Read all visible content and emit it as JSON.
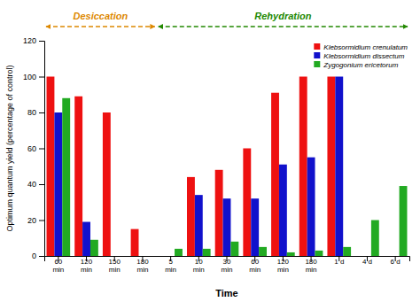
{
  "chart_data": {
    "type": "bar",
    "categories": [
      "60\nmin",
      "120\nmin",
      "150\nmin",
      "180\nmin",
      "5\nmin",
      "10\nmin",
      "30\nmin",
      "60\nmin",
      "120\nmin",
      "180\nmin",
      "1 d",
      "4 d",
      "6 d"
    ],
    "series": [
      {
        "name": "Klebsormidium crenulatum",
        "color": "#ee1111",
        "values": [
          100,
          89,
          80,
          15,
          0,
          44,
          48,
          60,
          91,
          100,
          100,
          0,
          0
        ]
      },
      {
        "name": "Klebsormidium dissectum",
        "color": "#1111cc",
        "values": [
          80,
          19,
          0,
          0,
          0,
          34,
          32,
          32,
          51,
          55,
          100,
          0,
          0
        ]
      },
      {
        "name": "Zygogonium ericetorum",
        "color": "#22aa22",
        "values": [
          88,
          9,
          0,
          0,
          4,
          4,
          8,
          5,
          2,
          3,
          5,
          20,
          39
        ]
      }
    ],
    "xlabel": "Time",
    "ylabel": "Optimum quantum yield (percentage of control)",
    "ylim": [
      0,
      120
    ],
    "yticks": [
      0,
      20,
      40,
      60,
      80,
      100,
      120
    ],
    "grid": false,
    "legend": "upper right",
    "annotations": [
      {
        "text": "Desiccation",
        "color": "#dd8800",
        "from": 0,
        "to": 3
      },
      {
        "text": "Rehydration",
        "color": "#228800",
        "from": 4,
        "to": 12
      }
    ]
  }
}
